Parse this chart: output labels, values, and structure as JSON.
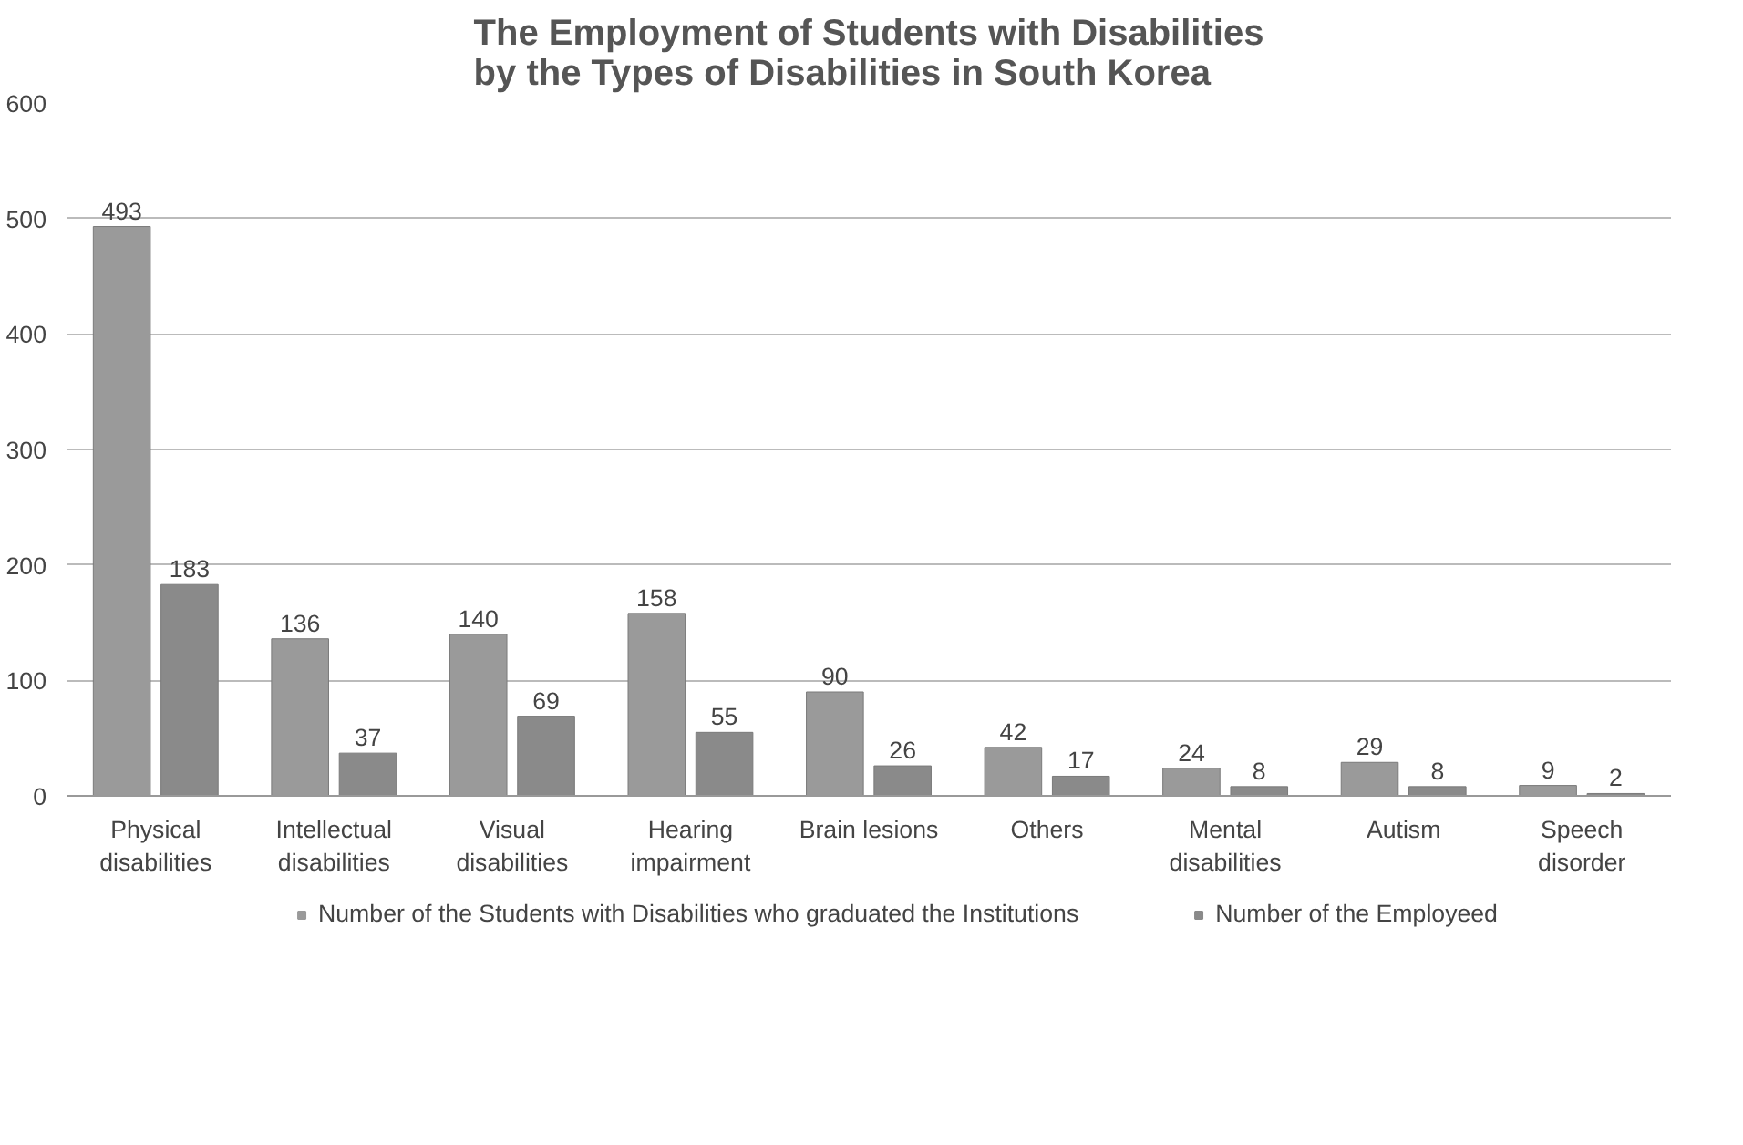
{
  "chart_data": {
    "type": "bar",
    "title": "The Employment of Students with Disabilities\nby the Types of Disabilities in South Korea",
    "categories": [
      "Physical\ndisabilities",
      "Intellectual\ndisabilities",
      "Visual\ndisabilities",
      "Hearing\nimpairment",
      "Brain lesions",
      "Others",
      "Mental\ndisabilities",
      "Autism",
      "Speech\ndisorder"
    ],
    "series": [
      {
        "name": "Number of the Students with Disabilities who graduated the Institutions",
        "color": "#9a9a9a",
        "values": [
          493,
          136,
          140,
          158,
          90,
          42,
          24,
          29,
          9
        ]
      },
      {
        "name": "Number of the Employeed",
        "color": "#8a8a8a",
        "values": [
          183,
          37,
          69,
          55,
          26,
          17,
          8,
          8,
          2
        ]
      }
    ],
    "ylim": [
      0,
      600
    ],
    "yticks": [
      0,
      100,
      200,
      300,
      400,
      500,
      600
    ],
    "grid": "y",
    "legend": "bottom",
    "data_labels": true
  }
}
